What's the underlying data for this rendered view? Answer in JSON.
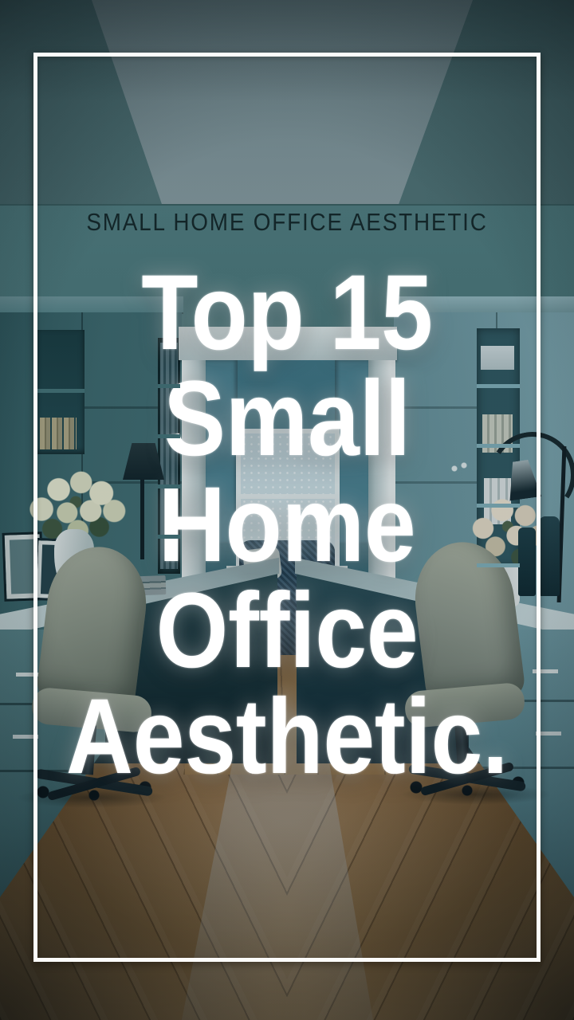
{
  "graphic": {
    "eyebrow": "SMALL HOME OFFICE AESTHETIC",
    "title_lines": [
      "Top 15",
      "Small",
      "Home",
      "Office",
      "Aesthetic."
    ],
    "photo_description": "Symmetrical small home office with teal built-in cabinetry, two facing desks with beige task chairs, white vases of flowers, a dark arc desk lamp, and a center doorway opening to a second room with a navy woven chair and lace-curtained window; warm wood floor with a light streak down the middle.",
    "palette": {
      "ceiling_slate": "#84989e",
      "wall_teal": "#4f7b7f",
      "cabinet_dark_teal": "#3c676d",
      "cabinet_light_teal": "#6b949e",
      "trim_white": "#d6e0e1",
      "accent_chair_navy": "#27485f",
      "upholstery_sage": "#8d968b",
      "floor_wood_brown": "#7a5a34",
      "frame_white": "#fcfcfa",
      "title_white": "#ffffff",
      "eyebrow_dark": "#132528"
    }
  }
}
